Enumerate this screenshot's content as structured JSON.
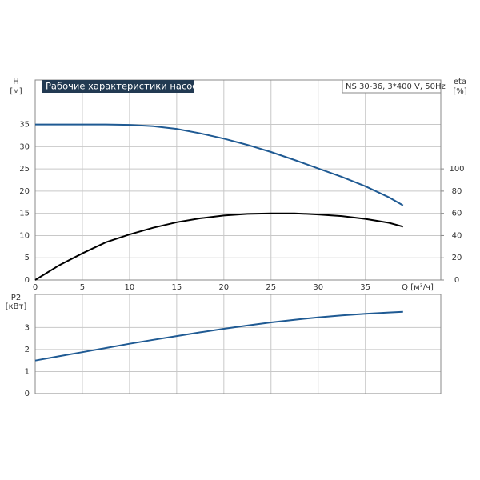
{
  "chart_data": [
    {
      "type": "line",
      "title": "Рабочие характеристики насоса",
      "subtitle": "NS 30-36, 3*400 V, 50Hz",
      "ylabel": "H",
      "ylabel_unit": "[м]",
      "y2label": "eta",
      "y2label_unit": "[%]",
      "xlabel": "Q [м³/ч]",
      "x": [
        0,
        2.5,
        5,
        7.5,
        10,
        12.5,
        15,
        17.5,
        20,
        22.5,
        25,
        27.5,
        30,
        32.5,
        35,
        37.5,
        39
      ],
      "series": [
        {
          "color": "#1f5a93",
          "values": [
            35,
            35,
            35,
            35,
            34.9,
            34.6,
            34,
            33,
            31.8,
            30.4,
            28.8,
            27,
            25.1,
            23.2,
            21.1,
            18.6,
            16.8
          ]
        },
        {
          "color": "#000000",
          "axis": "y2",
          "values": [
            0,
            13,
            24,
            34,
            41,
            47,
            52,
            55.5,
            58,
            59.5,
            60,
            60,
            59,
            57.5,
            55,
            51.5,
            48
          ]
        }
      ],
      "xlim": [
        0,
        43
      ],
      "xticks": [
        0,
        5,
        10,
        15,
        20,
        25,
        30,
        35
      ],
      "ylim": [
        0,
        45
      ],
      "yticks": [
        0,
        5,
        10,
        15,
        20,
        25,
        30,
        35
      ],
      "y2lim": [
        0,
        180
      ],
      "y2ticks": [
        0,
        20,
        40,
        60,
        80,
        100
      ],
      "grid": true
    },
    {
      "type": "line",
      "ylabel": "P2",
      "ylabel_unit": "[кВт]",
      "x": [
        0,
        2.5,
        5,
        7.5,
        10,
        12.5,
        15,
        17.5,
        20,
        22.5,
        25,
        27.5,
        30,
        32.5,
        35,
        37.5,
        39
      ],
      "series": [
        {
          "color": "#1f5a93",
          "values": [
            1.5,
            1.69,
            1.88,
            2.07,
            2.26,
            2.44,
            2.61,
            2.78,
            2.94,
            3.09,
            3.23,
            3.35,
            3.46,
            3.55,
            3.62,
            3.68,
            3.71
          ]
        }
      ],
      "xlim": [
        0,
        43
      ],
      "xticks": [
        0,
        5,
        10,
        15,
        20,
        25,
        30,
        35
      ],
      "ylim": [
        0,
        4.5
      ],
      "yticks": [
        0,
        1,
        2,
        3
      ],
      "grid": true
    }
  ]
}
